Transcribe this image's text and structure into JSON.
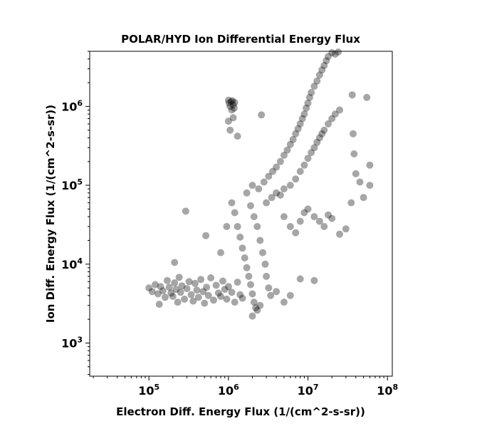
{
  "chart_data": {
    "type": "scatter",
    "title": "POLAR/HYD  Ion Differential Energy Flux",
    "xlabel": "Electron Diff. Energy Flux (1/(cm^2-s-sr))",
    "ylabel": "Ion Diff. Energy Flux (1/(cm^2-s-sr))",
    "x_scale": "log",
    "y_scale": "log",
    "xlim": [
      18000,
      115000000
    ],
    "ylim": [
      380,
      5000000
    ],
    "x_ticks": [
      {
        "value": 100000,
        "base": "10",
        "exp": "5"
      },
      {
        "value": 1000000,
        "base": "10",
        "exp": "6"
      },
      {
        "value": 10000000,
        "base": "10",
        "exp": "7"
      },
      {
        "value": 100000000,
        "base": "10",
        "exp": "8"
      }
    ],
    "y_ticks": [
      {
        "value": 1000,
        "base": "10",
        "exp": "3"
      },
      {
        "value": 10000,
        "base": "10",
        "exp": "4"
      },
      {
        "value": 100000,
        "base": "10",
        "exp": "5"
      },
      {
        "value": 1000000,
        "base": "10",
        "exp": "6"
      }
    ],
    "marker_color": "#000000",
    "marker_opacity": 0.35,
    "grid": false,
    "points": [
      [
        100000,
        5000
      ],
      [
        110000,
        4500
      ],
      [
        120000,
        5500
      ],
      [
        130000,
        4200
      ],
      [
        135000,
        3100
      ],
      [
        140000,
        5200
      ],
      [
        150000,
        4600
      ],
      [
        160000,
        3800
      ],
      [
        170000,
        6200
      ],
      [
        180000,
        5100
      ],
      [
        190000,
        4300
      ],
      [
        200000,
        3900
      ],
      [
        210000,
        5800
      ],
      [
        220000,
        4800
      ],
      [
        230000,
        3300
      ],
      [
        240000,
        6800
      ],
      [
        250000,
        4400
      ],
      [
        260000,
        5300
      ],
      [
        280000,
        3600
      ],
      [
        300000,
        4900
      ],
      [
        320000,
        6000
      ],
      [
        340000,
        4100
      ],
      [
        360000,
        3400
      ],
      [
        380000,
        5700
      ],
      [
        400000,
        4700
      ],
      [
        420000,
        3800
      ],
      [
        450000,
        6400
      ],
      [
        480000,
        4500
      ],
      [
        500000,
        3200
      ],
      [
        530000,
        5100
      ],
      [
        560000,
        4000
      ],
      [
        600000,
        6700
      ],
      [
        650000,
        3500
      ],
      [
        700000,
        5400
      ],
      [
        750000,
        4300
      ],
      [
        800000,
        3900
      ],
      [
        850000,
        6100
      ],
      [
        900000,
        4800
      ],
      [
        950000,
        3600
      ],
      [
        1000000,
        5200
      ],
      [
        1100000,
        4400
      ],
      [
        1200000,
        3300
      ],
      [
        1300000,
        5900
      ],
      [
        1400000,
        4100
      ],
      [
        1500000,
        3700
      ],
      [
        210000,
        10500
      ],
      [
        290000,
        47000
      ],
      [
        520000,
        23000
      ],
      [
        800000,
        14000
      ],
      [
        950000,
        30000
      ],
      [
        1000000,
        1200000
      ],
      [
        1020000,
        1100000
      ],
      [
        1050000,
        1000000
      ],
      [
        1080000,
        1150000
      ],
      [
        1100000,
        900000
      ],
      [
        1120000,
        1180000
      ],
      [
        1150000,
        1050000
      ],
      [
        1180000,
        950000
      ],
      [
        1200000,
        1120000
      ],
      [
        1000000,
        650000
      ],
      [
        1050000,
        500000
      ],
      [
        1150000,
        720000
      ],
      [
        1300000,
        420000
      ],
      [
        1100000,
        60000
      ],
      [
        1200000,
        45000
      ],
      [
        1300000,
        30000
      ],
      [
        1400000,
        22000
      ],
      [
        1500000,
        16000
      ],
      [
        1600000,
        12000
      ],
      [
        1700000,
        9000
      ],
      [
        1800000,
        7000
      ],
      [
        1900000,
        5500
      ],
      [
        2000000,
        4200
      ],
      [
        2100000,
        3300
      ],
      [
        2200000,
        2800
      ],
      [
        2000000,
        2200
      ],
      [
        2300000,
        2600
      ],
      [
        2500000,
        3000
      ],
      [
        1700000,
        80000
      ],
      [
        1900000,
        55000
      ],
      [
        2100000,
        40000
      ],
      [
        2300000,
        30000
      ],
      [
        2500000,
        20000
      ],
      [
        2700000,
        14000
      ],
      [
        2900000,
        10000
      ],
      [
        3000000,
        7000
      ],
      [
        3200000,
        5000
      ],
      [
        3400000,
        4000
      ],
      [
        2000000,
        100000
      ],
      [
        2400000,
        90000
      ],
      [
        2800000,
        110000
      ],
      [
        3200000,
        130000
      ],
      [
        3600000,
        150000
      ],
      [
        4000000,
        170000
      ],
      [
        4500000,
        200000
      ],
      [
        5000000,
        240000
      ],
      [
        5500000,
        280000
      ],
      [
        6000000,
        330000
      ],
      [
        6500000,
        380000
      ],
      [
        7000000,
        450000
      ],
      [
        7500000,
        520000
      ],
      [
        8000000,
        600000
      ],
      [
        8500000,
        700000
      ],
      [
        9000000,
        800000
      ],
      [
        9500000,
        950000
      ],
      [
        10000000,
        1100000
      ],
      [
        10500000,
        1300000
      ],
      [
        11000000,
        1500000
      ],
      [
        12000000,
        1800000
      ],
      [
        13000000,
        2100000
      ],
      [
        14000000,
        2500000
      ],
      [
        15000000,
        2900000
      ],
      [
        16000000,
        3300000
      ],
      [
        17000000,
        3800000
      ],
      [
        18000000,
        4300000
      ],
      [
        20000000,
        4800000
      ],
      [
        22000000,
        4600000
      ],
      [
        24000000,
        4900000
      ],
      [
        3000000,
        60000
      ],
      [
        3500000,
        70000
      ],
      [
        4000000,
        80000
      ],
      [
        4500000,
        75000
      ],
      [
        5000000,
        90000
      ],
      [
        6000000,
        100000
      ],
      [
        7000000,
        120000
      ],
      [
        8000000,
        150000
      ],
      [
        9000000,
        180000
      ],
      [
        10000000,
        220000
      ],
      [
        11000000,
        260000
      ],
      [
        12000000,
        300000
      ],
      [
        13000000,
        350000
      ],
      [
        14000000,
        400000
      ],
      [
        15000000,
        450000
      ],
      [
        16000000,
        500000
      ],
      [
        18000000,
        600000
      ],
      [
        20000000,
        700000
      ],
      [
        22000000,
        800000
      ],
      [
        25000000,
        900000
      ],
      [
        2600000,
        780000
      ],
      [
        5000000,
        40000
      ],
      [
        6000000,
        30000
      ],
      [
        7000000,
        25000
      ],
      [
        8000000,
        35000
      ],
      [
        9000000,
        45000
      ],
      [
        10000000,
        50000
      ],
      [
        12000000,
        40000
      ],
      [
        14000000,
        35000
      ],
      [
        16000000,
        30000
      ],
      [
        18000000,
        42000
      ],
      [
        20000000,
        38000
      ],
      [
        25000000,
        24000
      ],
      [
        30000000,
        28000
      ],
      [
        35000000,
        60000
      ],
      [
        36000000,
        1400000
      ],
      [
        37000000,
        450000
      ],
      [
        38000000,
        250000
      ],
      [
        40000000,
        140000
      ],
      [
        45000000,
        110000
      ],
      [
        50000000,
        70000
      ],
      [
        55000000,
        1300000
      ],
      [
        60000000,
        180000
      ],
      [
        60000000,
        100000
      ],
      [
        8000000,
        6500
      ],
      [
        12000000,
        6200
      ],
      [
        6000000,
        4000
      ],
      [
        5000000,
        3300
      ],
      [
        4000000,
        4500
      ]
    ]
  }
}
